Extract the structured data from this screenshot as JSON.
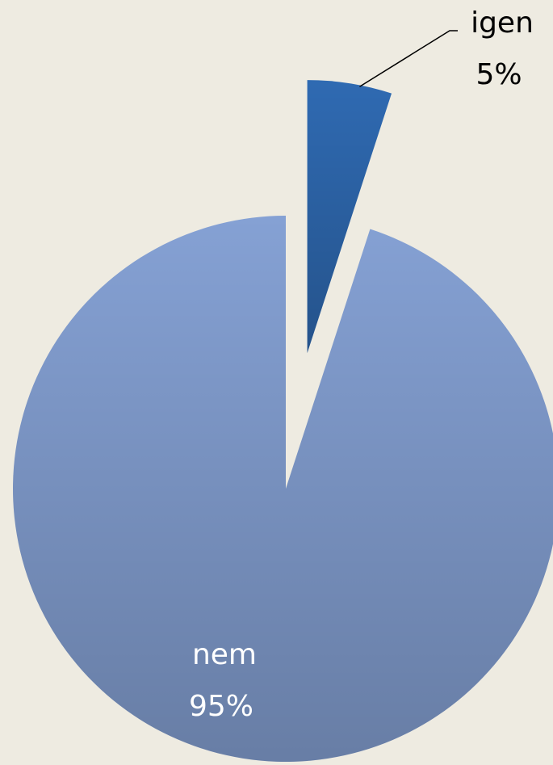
{
  "chart_data": {
    "type": "pie",
    "categories": [
      "igen",
      "nem"
    ],
    "values": [
      5,
      95
    ],
    "value_labels": [
      "5%",
      "95%"
    ],
    "colors": [
      "#2f6ab2",
      "#85a1d4"
    ]
  }
}
